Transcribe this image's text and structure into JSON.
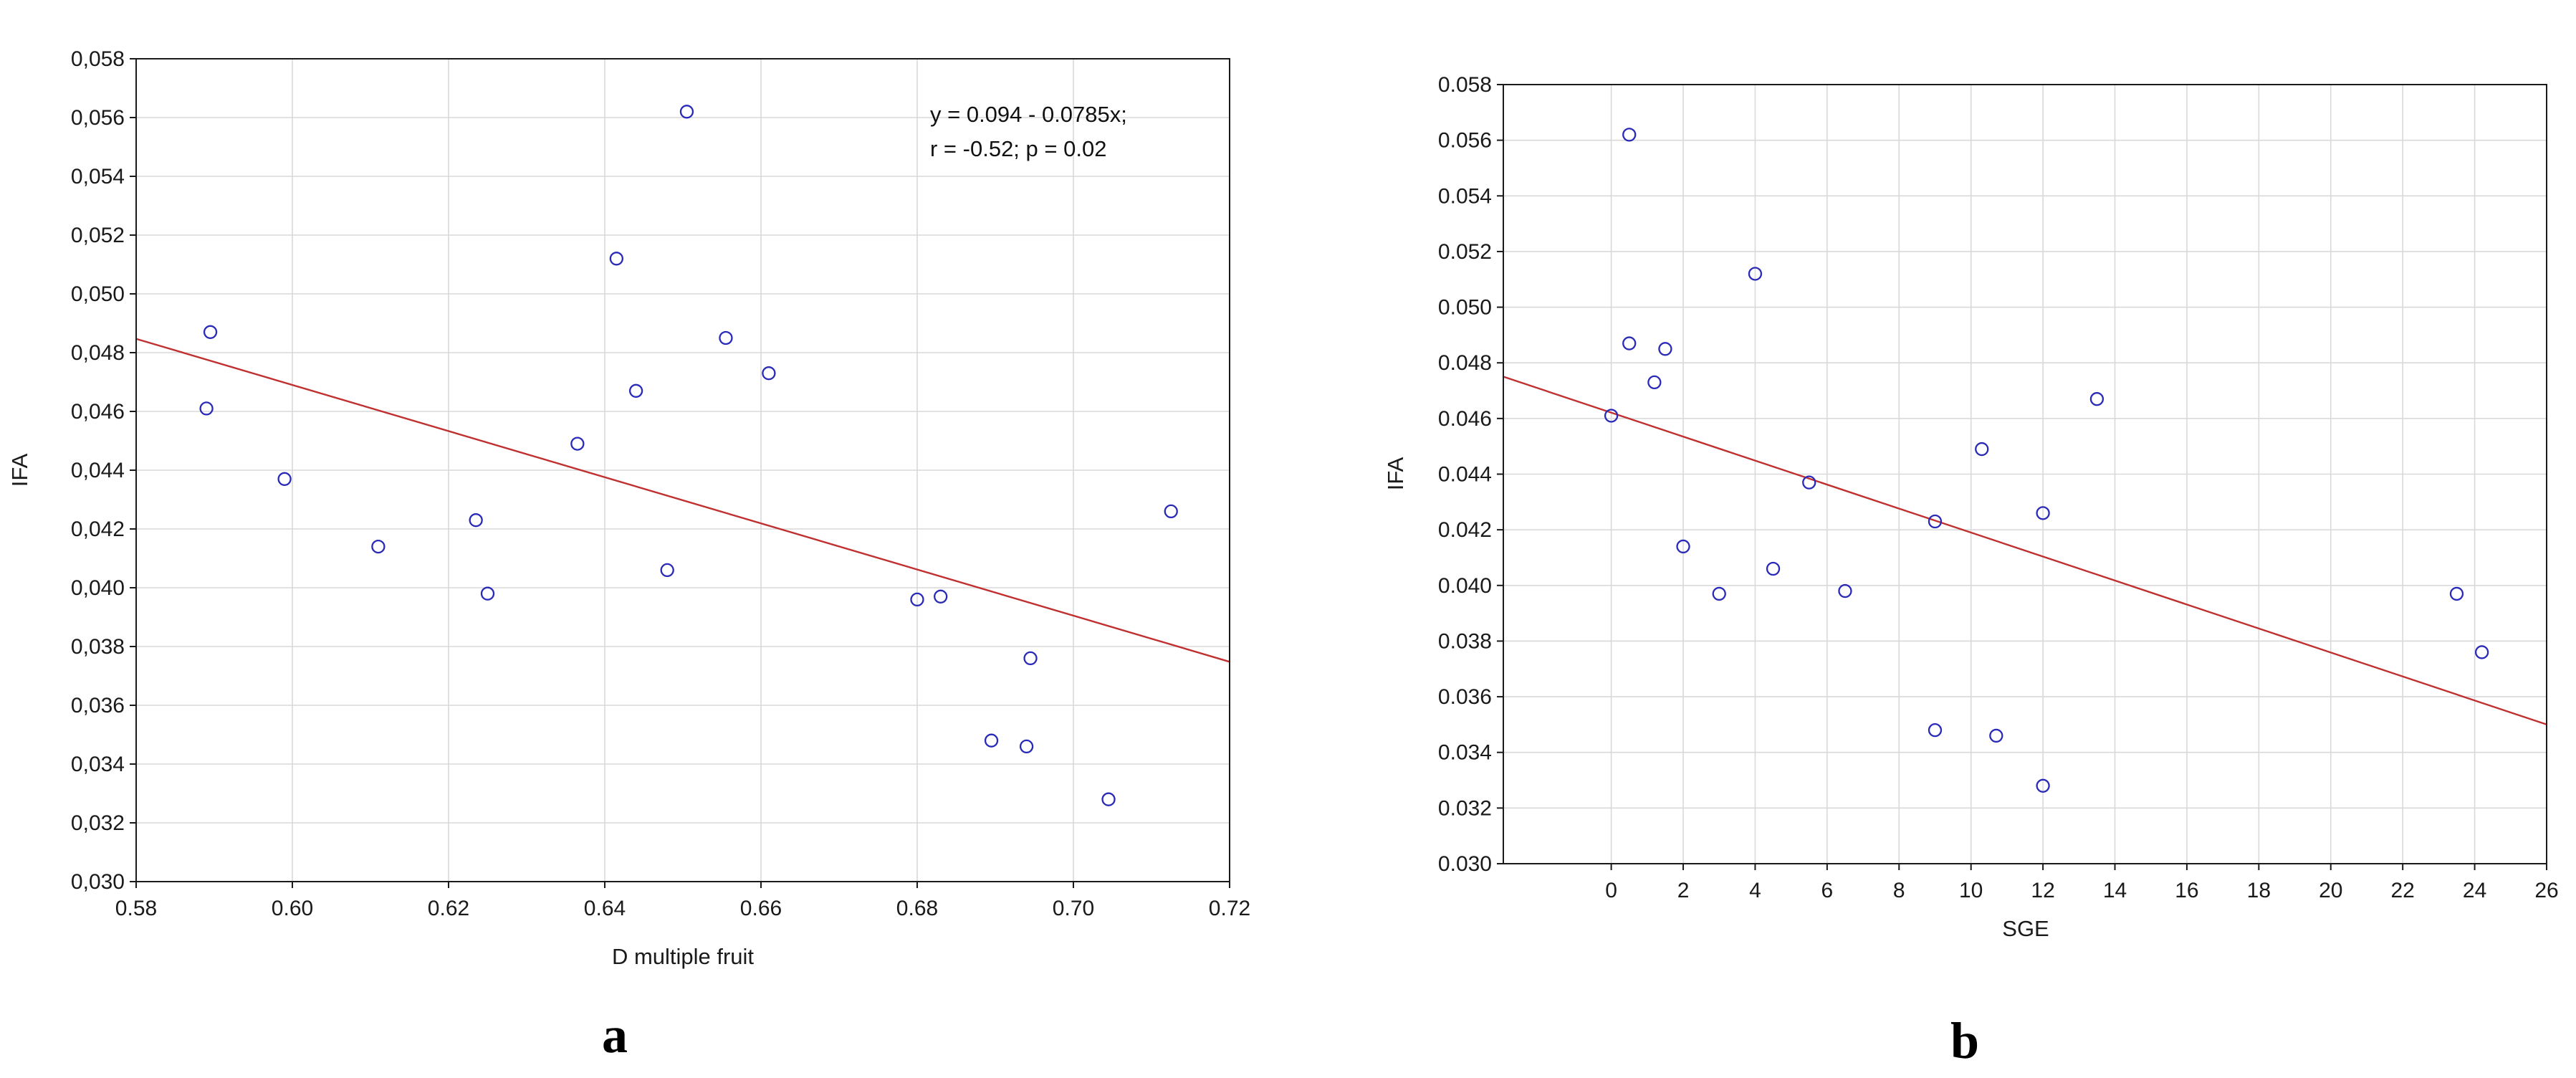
{
  "chart_data": [
    {
      "type": "scatter",
      "panel_label": "a",
      "title": "",
      "xlabel": "D multiple fruit",
      "ylabel": "IFA",
      "xlim": [
        0.58,
        0.72
      ],
      "ylim": [
        0.03,
        0.058
      ],
      "x_ticks": [
        "0.58",
        "0.60",
        "0.62",
        "0.64",
        "0.66",
        "0.68",
        "0.70",
        "0.72"
      ],
      "y_ticks": [
        "0,030",
        "0,032",
        "0,034",
        "0,036",
        "0,038",
        "0,040",
        "0,042",
        "0,044",
        "0,046",
        "0,048",
        "0,050",
        "0,052",
        "0,054",
        "0,056",
        "0,058"
      ],
      "grid": true,
      "annotation": [
        "y = 0.094 - 0.0785x;",
        "r = -0.52; p = 0.02"
      ],
      "regression": {
        "intercept": 0.094,
        "slope": -0.0785
      },
      "points": [
        {
          "x": 0.589,
          "y": 0.0461
        },
        {
          "x": 0.5895,
          "y": 0.0487
        },
        {
          "x": 0.599,
          "y": 0.0437
        },
        {
          "x": 0.611,
          "y": 0.0414
        },
        {
          "x": 0.6235,
          "y": 0.0423
        },
        {
          "x": 0.625,
          "y": 0.0398
        },
        {
          "x": 0.6365,
          "y": 0.0449
        },
        {
          "x": 0.6415,
          "y": 0.0512
        },
        {
          "x": 0.644,
          "y": 0.0467
        },
        {
          "x": 0.648,
          "y": 0.0406
        },
        {
          "x": 0.6505,
          "y": 0.0562
        },
        {
          "x": 0.6555,
          "y": 0.0485
        },
        {
          "x": 0.661,
          "y": 0.0473
        },
        {
          "x": 0.68,
          "y": 0.0396
        },
        {
          "x": 0.683,
          "y": 0.0397
        },
        {
          "x": 0.6895,
          "y": 0.0348
        },
        {
          "x": 0.694,
          "y": 0.0346
        },
        {
          "x": 0.6945,
          "y": 0.0376
        },
        {
          "x": 0.7045,
          "y": 0.0328
        },
        {
          "x": 0.7125,
          "y": 0.0426
        }
      ],
      "colors": {
        "points": "#2a2ab8",
        "line": "#c03030"
      }
    },
    {
      "type": "scatter",
      "panel_label": "b",
      "title": "",
      "xlabel": "SGE",
      "ylabel": "IFA",
      "xlim": [
        -3,
        26
      ],
      "ylim": [
        0.03,
        0.058
      ],
      "x_ticks": [
        "0",
        "2",
        "4",
        "6",
        "8",
        "10",
        "12",
        "14",
        "16",
        "18",
        "20",
        "22",
        "24",
        "26"
      ],
      "y_ticks": [
        "0.030",
        "0.032",
        "0.034",
        "0.036",
        "0.038",
        "0.040",
        "0.042",
        "0.044",
        "0.046",
        "0.048",
        "0.050",
        "0.052",
        "0.054",
        "0.056",
        "0.058"
      ],
      "grid": true,
      "regression": {
        "intercept": 0.04621,
        "slope": -0.000431
      },
      "points": [
        {
          "x": 0.0,
          "y": 0.0461
        },
        {
          "x": 0.5,
          "y": 0.0562
        },
        {
          "x": 0.5,
          "y": 0.0487
        },
        {
          "x": 1.2,
          "y": 0.0473
        },
        {
          "x": 1.5,
          "y": 0.0485
        },
        {
          "x": 2.0,
          "y": 0.0414
        },
        {
          "x": 3.0,
          "y": 0.0397
        },
        {
          "x": 4.0,
          "y": 0.0512
        },
        {
          "x": 4.5,
          "y": 0.0406
        },
        {
          "x": 5.5,
          "y": 0.0437
        },
        {
          "x": 6.5,
          "y": 0.0398
        },
        {
          "x": 9.0,
          "y": 0.0423
        },
        {
          "x": 9.0,
          "y": 0.0348
        },
        {
          "x": 10.3,
          "y": 0.0449
        },
        {
          "x": 10.7,
          "y": 0.0346
        },
        {
          "x": 12.0,
          "y": 0.0426
        },
        {
          "x": 12.0,
          "y": 0.0328
        },
        {
          "x": 13.5,
          "y": 0.0467
        },
        {
          "x": 23.5,
          "y": 0.0397
        },
        {
          "x": 24.2,
          "y": 0.0376
        }
      ],
      "colors": {
        "points": "#2a2ab8",
        "line": "#c03030"
      }
    }
  ]
}
